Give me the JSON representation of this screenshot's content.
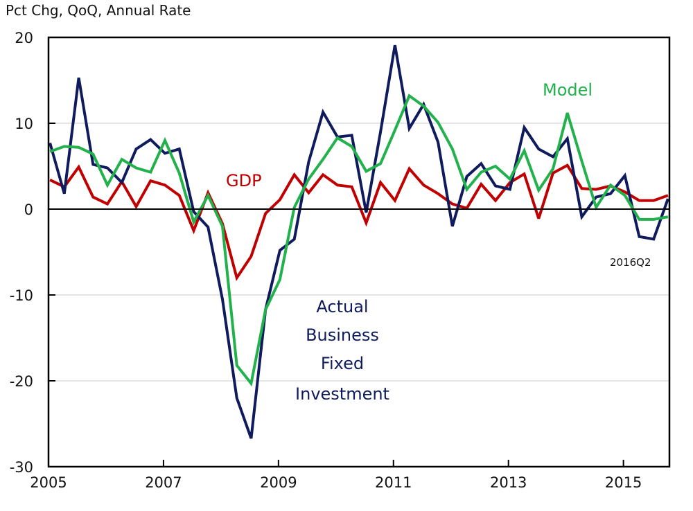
{
  "chart_data": {
    "type": "line",
    "title": "",
    "subtitle": "Pct Chg, QoQ, Annual Rate",
    "xlabel": "",
    "ylabel": "Pct Chg, QoQ, Annual Rate",
    "x_start": "2005Q1",
    "x_end": "2015Q4",
    "frequency": "quarterly",
    "x_range": [
      2005.0,
      2015.8
    ],
    "ylim": [
      -30,
      20
    ],
    "yticks": [
      20,
      10,
      0,
      -10,
      -20,
      -30
    ],
    "ytick_labels": [
      "20",
      "10",
      "0",
      "-10",
      "-20",
      "-30"
    ],
    "xticks": [
      2005,
      2007,
      2009,
      2011,
      2013,
      2015
    ],
    "xtick_labels": [
      "2005",
      "2007",
      "2009",
      "2011",
      "2013",
      "2015"
    ],
    "grid": "horizontal",
    "legend": "none (inline labels)",
    "series": [
      {
        "name": "Actual Business Fixed Investment",
        "color": "#0F1B5C",
        "values": [
          7.7,
          1.8,
          15.3,
          5.2,
          4.8,
          3.1,
          7.0,
          8.1,
          6.5,
          7.0,
          -0.3,
          -2.1,
          -10.5,
          -22.0,
          -26.7,
          -11.7,
          -4.8,
          -3.5,
          5.5,
          11.3,
          8.4,
          8.6,
          -0.4,
          9.0,
          19.1,
          9.4,
          12.2,
          7.8,
          -2.0,
          3.8,
          5.3,
          2.7,
          2.3,
          9.5,
          7.0,
          6.1,
          8.2,
          -0.9,
          1.4,
          1.8,
          3.9,
          -3.2,
          -3.5,
          1.2
        ]
      },
      {
        "name": "Model",
        "color": "#22B14C",
        "values": [
          6.7,
          7.3,
          7.2,
          6.4,
          2.8,
          5.8,
          4.8,
          4.3,
          8.0,
          4.2,
          -1.5,
          1.6,
          -2.0,
          -18.2,
          -20.3,
          -11.7,
          -8.2,
          0.2,
          3.5,
          5.8,
          8.3,
          7.3,
          4.4,
          5.3,
          9.2,
          13.2,
          12.0,
          10.1,
          7.0,
          2.3,
          4.3,
          5.0,
          3.5,
          6.8,
          2.2,
          4.7,
          11.2,
          5.6,
          0.2,
          2.8,
          1.6,
          -1.2,
          -1.2,
          -0.9
        ]
      },
      {
        "name": "GDP",
        "color": "#C00000",
        "values": [
          3.4,
          2.6,
          4.9,
          1.4,
          0.6,
          3.2,
          0.3,
          3.3,
          2.8,
          1.6,
          -2.5,
          1.9,
          -1.7,
          -8.0,
          -5.5,
          -0.5,
          1.1,
          4.0,
          1.9,
          4.0,
          2.8,
          2.6,
          -1.6,
          3.1,
          1.0,
          4.7,
          2.8,
          1.8,
          0.6,
          0.1,
          2.9,
          1.0,
          3.1,
          4.1,
          -1.1,
          4.2,
          5.1,
          2.4,
          2.3,
          2.7,
          2.0,
          1.0,
          1.0,
          1.6
        ]
      }
    ],
    "annotations": [
      {
        "id": "model",
        "lines": [
          "Model"
        ],
        "color": "#22B14C",
        "near": "2014, 13"
      },
      {
        "id": "gdp",
        "lines": [
          "GDP"
        ],
        "color": "#C00000",
        "near": "2008, 3"
      },
      {
        "id": "actual",
        "lines": [
          "Actual",
          "Business",
          "Fixed",
          "Investment"
        ],
        "color": "#0F1B5C",
        "near": "2010, -15"
      },
      {
        "id": "endpoint",
        "lines": [
          "2016Q2"
        ],
        "color": "#111111",
        "near": "2015.5, -6"
      }
    ]
  }
}
